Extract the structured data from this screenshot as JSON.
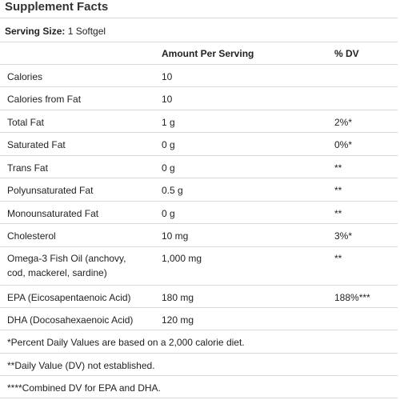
{
  "title": "Supplement Facts",
  "serving": {
    "label": "Serving Size:",
    "value": "1 Softgel"
  },
  "headers": {
    "amount": "Amount Per Serving",
    "dv": "% DV"
  },
  "rows": [
    {
      "name": "Calories",
      "amount": "10",
      "dv": ""
    },
    {
      "name": "Calories from Fat",
      "amount": "10",
      "dv": ""
    },
    {
      "name": "Total Fat",
      "amount": "1 g",
      "dv": "2%*"
    },
    {
      "name": "Saturated Fat",
      "amount": "0 g",
      "dv": "0%*"
    },
    {
      "name": "Trans Fat",
      "amount": "0 g",
      "dv": "**"
    },
    {
      "name": "Polyunsaturated Fat",
      "amount": "0.5 g",
      "dv": "**"
    },
    {
      "name": "Monounsaturated Fat",
      "amount": "0 g",
      "dv": "**"
    },
    {
      "name": "Cholesterol",
      "amount": "10 mg",
      "dv": "3%*"
    },
    {
      "name_line1": "Omega-3 Fish Oil (anchovy,",
      "name_line2": "cod, mackerel, sardine)",
      "amount": "1,000 mg",
      "dv": "**"
    },
    {
      "name": "EPA (Eicosapentaenoic Acid)",
      "amount": "180 mg",
      "dv": "188%***"
    },
    {
      "name": "DHA (Docosahexaenoic Acid)",
      "amount": "120 mg",
      "dv": ""
    }
  ],
  "footnotes": [
    "*Percent Daily Values are based on a 2,000 calorie diet.",
    "**Daily Value (DV) not established.",
    "****Combined DV for EPA and DHA."
  ]
}
